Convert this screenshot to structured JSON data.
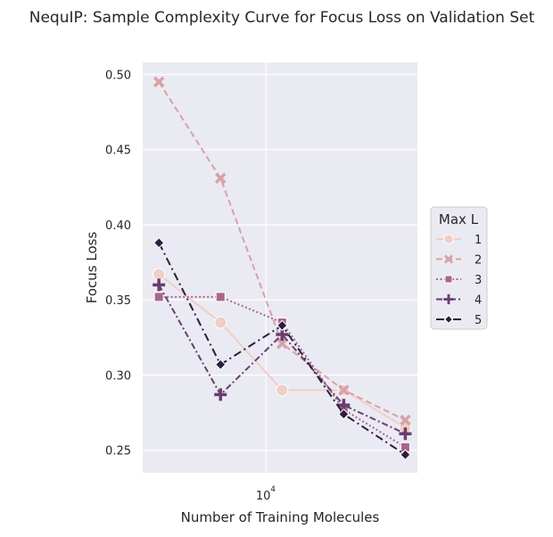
{
  "chart_data": {
    "type": "line",
    "title": "NequIP: Sample Complexity Curve for Focus Loss on Validation Set",
    "xlabel": "Number of Training Molecules",
    "ylabel": "Focus Loss",
    "x_scale": "log",
    "x": [
      3000,
      6000,
      12000,
      24000,
      48000
    ],
    "xlim": [
      2500,
      55000
    ],
    "ylim": [
      0.235,
      0.508
    ],
    "x_ticks": [
      {
        "value": 10000,
        "label": "10",
        "exponent": "4"
      }
    ],
    "y_ticks": [
      {
        "value": 0.25,
        "label": "0.25"
      },
      {
        "value": 0.3,
        "label": "0.30"
      },
      {
        "value": 0.35,
        "label": "0.35"
      },
      {
        "value": 0.4,
        "label": "0.40"
      },
      {
        "value": 0.45,
        "label": "0.45"
      },
      {
        "value": 0.5,
        "label": "0.50"
      }
    ],
    "grid": true,
    "legend_title": "Max L",
    "legend_position": "right",
    "series": [
      {
        "name": "1",
        "values": [
          0.367,
          0.335,
          0.29,
          0.29,
          0.265
        ],
        "color": "#efcfc6",
        "marker": "circle",
        "dash": "solid"
      },
      {
        "name": "2",
        "values": [
          0.495,
          0.431,
          0.321,
          0.29,
          0.27
        ],
        "color": "#d8a1a8",
        "marker": "x",
        "dash": "dashed"
      },
      {
        "name": "3",
        "values": [
          0.352,
          0.352,
          0.335,
          0.277,
          0.252
        ],
        "color": "#a8668b",
        "marker": "square",
        "dash": "dotted"
      },
      {
        "name": "4",
        "values": [
          0.36,
          0.287,
          0.327,
          0.28,
          0.261
        ],
        "color": "#693e6e",
        "marker": "plus",
        "dash": "dashdot"
      },
      {
        "name": "5",
        "values": [
          0.388,
          0.307,
          0.333,
          0.274,
          0.247
        ],
        "color": "#2d1d3f",
        "marker": "diamond",
        "dash": "dashdot2"
      }
    ]
  }
}
